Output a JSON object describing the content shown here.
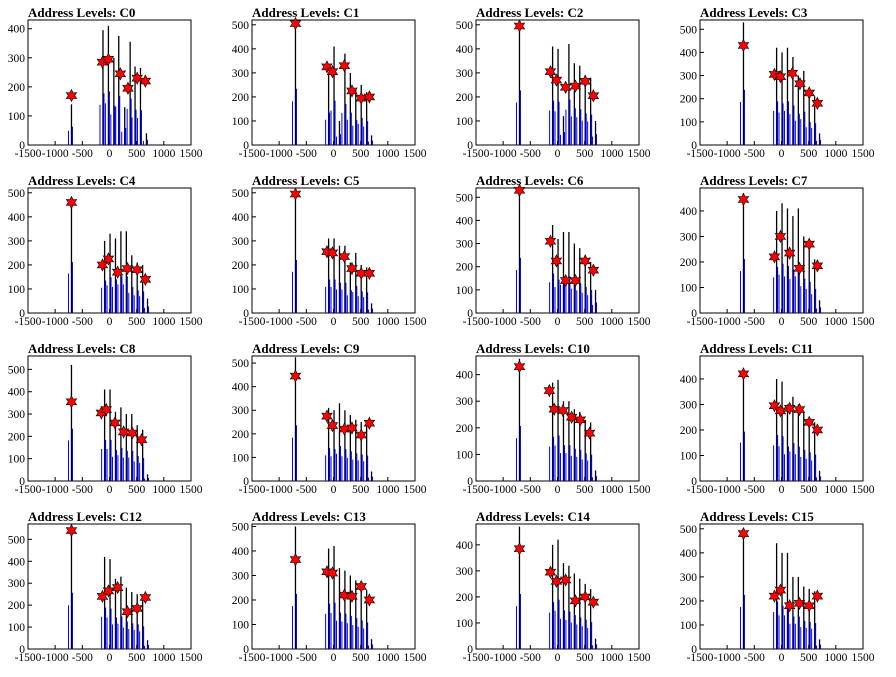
{
  "chart_data": [
    {
      "type": "bar",
      "title": "Address Levels: C0",
      "xlim": [
        -1500,
        1500
      ],
      "ylim": [
        0,
        430
      ],
      "yticks": [
        0,
        100,
        200,
        300,
        400
      ],
      "xticks": [
        -1500,
        -1000,
        -500,
        0,
        500,
        1000,
        1500
      ],
      "series": [
        {
          "x": [
            -700,
            -120,
            -20,
            80,
            170,
            280,
            380,
            470,
            570,
            680
          ],
          "values": [
            140,
            395,
            410,
            300,
            375,
            130,
            355,
            270,
            265,
            40
          ]
        }
      ],
      "peaks": {
        "x": [
          -700,
          -130,
          -20,
          200,
          340,
          510,
          660
        ],
        "y": [
          170,
          285,
          295,
          245,
          195,
          230,
          220
        ]
      }
    },
    {
      "type": "bar",
      "title": "Address Levels: C1",
      "xlim": [
        -1500,
        1500
      ],
      "ylim": [
        0,
        520
      ],
      "yticks": [
        0,
        100,
        200,
        300,
        400,
        500
      ],
      "xticks": [
        -1500,
        -1000,
        -500,
        0,
        500,
        1000,
        1500
      ],
      "series": [
        {
          "x": [
            -700,
            -90,
            10,
            110,
            210,
            310,
            410,
            510,
            610,
            700
          ],
          "values": [
            520,
            300,
            410,
            100,
            380,
            300,
            230,
            250,
            220,
            40
          ]
        }
      ],
      "peaks": {
        "x": [
          -700,
          -120,
          -20,
          200,
          340,
          510,
          660
        ],
        "y": [
          505,
          325,
          305,
          330,
          225,
          195,
          200
        ]
      }
    },
    {
      "type": "bar",
      "title": "Address Levels: C2",
      "xlim": [
        -1500,
        1500
      ],
      "ylim": [
        0,
        520
      ],
      "yticks": [
        0,
        100,
        200,
        300,
        400,
        500
      ],
      "xticks": [
        -1500,
        -1000,
        -500,
        0,
        500,
        1000,
        1500
      ],
      "series": [
        {
          "x": [
            -700,
            -90,
            10,
            110,
            210,
            310,
            410,
            510,
            610,
            700
          ],
          "values": [
            505,
            410,
            400,
            120,
            420,
            340,
            330,
            290,
            280,
            100
          ]
        }
      ],
      "peaks": {
        "x": [
          -700,
          -130,
          -20,
          150,
          330,
          510,
          660
        ],
        "y": [
          495,
          305,
          270,
          240,
          245,
          265,
          205
        ]
      }
    },
    {
      "type": "bar",
      "title": "Address Levels: C3",
      "xlim": [
        -1500,
        1500
      ],
      "ylim": [
        0,
        540
      ],
      "yticks": [
        0,
        100,
        200,
        300,
        400,
        500
      ],
      "xticks": [
        -1500,
        -1000,
        -500,
        0,
        500,
        1000,
        1500
      ],
      "series": [
        {
          "x": [
            -700,
            -90,
            10,
            110,
            210,
            310,
            410,
            510,
            610,
            700
          ],
          "values": [
            530,
            420,
            400,
            420,
            380,
            300,
            320,
            220,
            210,
            50
          ]
        }
      ],
      "peaks": {
        "x": [
          -700,
          -130,
          -20,
          200,
          340,
          510,
          660
        ],
        "y": [
          430,
          305,
          295,
          310,
          265,
          225,
          180
        ]
      }
    },
    {
      "type": "bar",
      "title": "Address Levels: C4",
      "xlim": [
        -1500,
        1500
      ],
      "ylim": [
        0,
        520
      ],
      "yticks": [
        0,
        100,
        200,
        300,
        400,
        500
      ],
      "xticks": [
        -1500,
        -1000,
        -500,
        0,
        500,
        1000,
        1500
      ],
      "series": [
        {
          "x": [
            -700,
            -90,
            10,
            110,
            210,
            310,
            410,
            510,
            610,
            700
          ],
          "values": [
            470,
            300,
            330,
            310,
            340,
            340,
            240,
            210,
            200,
            60
          ]
        }
      ],
      "peaks": {
        "x": [
          -700,
          -130,
          -20,
          150,
          330,
          510,
          660
        ],
        "y": [
          460,
          200,
          225,
          170,
          185,
          180,
          140
        ]
      }
    },
    {
      "type": "bar",
      "title": "Address Levels: C5",
      "xlim": [
        -1500,
        1500
      ],
      "ylim": [
        0,
        520
      ],
      "yticks": [
        0,
        100,
        200,
        300,
        400,
        500
      ],
      "xticks": [
        -1500,
        -1000,
        -500,
        0,
        500,
        1000,
        1500
      ],
      "series": [
        {
          "x": [
            -700,
            -90,
            10,
            110,
            210,
            310,
            410,
            510,
            610,
            700
          ],
          "values": [
            490,
            310,
            310,
            280,
            280,
            210,
            250,
            200,
            190,
            40
          ]
        }
      ],
      "peaks": {
        "x": [
          -700,
          -120,
          -20,
          200,
          340,
          510,
          660
        ],
        "y": [
          495,
          255,
          250,
          235,
          185,
          165,
          165
        ]
      }
    },
    {
      "type": "bar",
      "title": "Address Levels: C6",
      "xlim": [
        -1500,
        1500
      ],
      "ylim": [
        0,
        540
      ],
      "yticks": [
        0,
        100,
        200,
        300,
        400,
        500
      ],
      "xticks": [
        -1500,
        -1000,
        -500,
        0,
        500,
        1000,
        1500
      ],
      "series": [
        {
          "x": [
            -700,
            -90,
            10,
            110,
            210,
            310,
            410,
            510,
            610,
            700
          ],
          "values": [
            530,
            380,
            320,
            350,
            350,
            300,
            280,
            250,
            220,
            100
          ]
        }
      ],
      "peaks": {
        "x": [
          -700,
          -130,
          -20,
          150,
          330,
          510,
          660
        ],
        "y": [
          530,
          310,
          225,
          140,
          140,
          225,
          185
        ]
      }
    },
    {
      "type": "bar",
      "title": "Address Levels: C7",
      "xlim": [
        -1500,
        1500
      ],
      "ylim": [
        0,
        490
      ],
      "yticks": [
        0,
        100,
        200,
        300,
        400
      ],
      "xticks": [
        -1500,
        -1000,
        -500,
        0,
        500,
        1000,
        1500
      ],
      "series": [
        {
          "x": [
            -700,
            -90,
            10,
            110,
            210,
            310,
            410,
            510,
            610,
            700
          ],
          "values": [
            470,
            400,
            430,
            410,
            380,
            410,
            300,
            270,
            210,
            50
          ]
        }
      ],
      "peaks": {
        "x": [
          -700,
          -130,
          -20,
          150,
          330,
          510,
          660
        ],
        "y": [
          445,
          220,
          300,
          235,
          175,
          270,
          185
        ]
      }
    },
    {
      "type": "bar",
      "title": "Address Levels: C8",
      "xlim": [
        -1500,
        1500
      ],
      "ylim": [
        0,
        560
      ],
      "yticks": [
        0,
        100,
        200,
        300,
        400,
        500
      ],
      "xticks": [
        -1500,
        -1000,
        -500,
        0,
        500,
        1000,
        1500
      ],
      "series": [
        {
          "x": [
            -700,
            -90,
            10,
            110,
            210,
            310,
            410,
            510,
            610,
            700
          ],
          "values": [
            520,
            410,
            410,
            310,
            330,
            300,
            300,
            250,
            230,
            30
          ]
        }
      ],
      "peaks": {
        "x": [
          -700,
          -150,
          -60,
          100,
          260,
          420,
          590
        ],
        "y": [
          355,
          305,
          320,
          260,
          220,
          215,
          185
        ]
      }
    },
    {
      "type": "bar",
      "title": "Address Levels: C9",
      "xlim": [
        -1500,
        1500
      ],
      "ylim": [
        0,
        530
      ],
      "yticks": [
        0,
        100,
        200,
        300,
        400,
        500
      ],
      "xticks": [
        -1500,
        -1000,
        -500,
        0,
        500,
        1000,
        1500
      ],
      "series": [
        {
          "x": [
            -700,
            -90,
            10,
            110,
            210,
            310,
            410,
            510,
            610,
            700
          ],
          "values": [
            525,
            310,
            300,
            330,
            300,
            280,
            260,
            250,
            240,
            40
          ]
        }
      ],
      "peaks": {
        "x": [
          -700,
          -120,
          -20,
          200,
          340,
          510,
          660
        ],
        "y": [
          445,
          275,
          235,
          220,
          225,
          195,
          245
        ]
      }
    },
    {
      "type": "bar",
      "title": "Address Levels: C10",
      "xlim": [
        -1500,
        1500
      ],
      "ylim": [
        0,
        470
      ],
      "yticks": [
        0,
        100,
        200,
        300,
        400
      ],
      "xticks": [
        -1500,
        -1000,
        -500,
        0,
        500,
        1000,
        1500
      ],
      "series": [
        {
          "x": [
            -700,
            -90,
            10,
            110,
            210,
            310,
            410,
            510,
            610,
            700
          ],
          "values": [
            460,
            370,
            380,
            300,
            300,
            270,
            260,
            230,
            220,
            40
          ]
        }
      ],
      "peaks": {
        "x": [
          -700,
          -150,
          -60,
          100,
          260,
          420,
          590
        ],
        "y": [
          430,
          340,
          270,
          265,
          240,
          230,
          180
        ]
      }
    },
    {
      "type": "bar",
      "title": "Address Levels: C11",
      "xlim": [
        -1500,
        1500
      ],
      "ylim": [
        0,
        490
      ],
      "yticks": [
        0,
        100,
        200,
        300,
        400
      ],
      "xticks": [
        -1500,
        -1000,
        -500,
        0,
        500,
        1000,
        1500
      ],
      "series": [
        {
          "x": [
            -700,
            -90,
            10,
            110,
            210,
            310,
            410,
            510,
            610,
            700
          ],
          "values": [
            430,
            400,
            390,
            300,
            330,
            300,
            270,
            250,
            230,
            40
          ]
        }
      ],
      "peaks": {
        "x": [
          -700,
          -130,
          -20,
          150,
          330,
          510,
          660
        ],
        "y": [
          420,
          295,
          275,
          285,
          280,
          230,
          200
        ]
      }
    },
    {
      "type": "bar",
      "title": "Address Levels: C12",
      "xlim": [
        -1500,
        1500
      ],
      "ylim": [
        0,
        570
      ],
      "yticks": [
        0,
        100,
        200,
        300,
        400,
        500
      ],
      "xticks": [
        -1500,
        -1000,
        -500,
        0,
        500,
        1000,
        1500
      ],
      "series": [
        {
          "x": [
            -700,
            -90,
            10,
            110,
            210,
            310,
            410,
            510,
            610,
            700
          ],
          "values": [
            570,
            420,
            410,
            320,
            330,
            280,
            260,
            250,
            230,
            40
          ]
        }
      ],
      "peaks": {
        "x": [
          -700,
          -130,
          -20,
          150,
          330,
          510,
          660
        ],
        "y": [
          540,
          240,
          265,
          280,
          170,
          185,
          235
        ]
      }
    },
    {
      "type": "bar",
      "title": "Address Levels: C13",
      "xlim": [
        -1500,
        1500
      ],
      "ylim": [
        0,
        510
      ],
      "yticks": [
        0,
        100,
        200,
        300,
        400,
        500
      ],
      "xticks": [
        -1500,
        -1000,
        -500,
        0,
        500,
        1000,
        1500
      ],
      "series": [
        {
          "x": [
            -700,
            -90,
            10,
            110,
            210,
            310,
            410,
            510,
            610,
            700
          ],
          "values": [
            500,
            410,
            420,
            330,
            320,
            300,
            280,
            260,
            240,
            40
          ]
        }
      ],
      "peaks": {
        "x": [
          -700,
          -120,
          -20,
          200,
          340,
          510,
          660
        ],
        "y": [
          365,
          315,
          310,
          220,
          215,
          255,
          200
        ]
      }
    },
    {
      "type": "bar",
      "title": "Address Levels: C14",
      "xlim": [
        -1500,
        1500
      ],
      "ylim": [
        0,
        480
      ],
      "yticks": [
        0,
        100,
        200,
        300,
        400
      ],
      "xticks": [
        -1500,
        -1000,
        -500,
        0,
        500,
        1000,
        1500
      ],
      "series": [
        {
          "x": [
            -700,
            -90,
            10,
            110,
            210,
            310,
            410,
            510,
            610,
            700
          ],
          "values": [
            470,
            400,
            420,
            330,
            320,
            290,
            270,
            250,
            230,
            40
          ]
        }
      ],
      "peaks": {
        "x": [
          -700,
          -130,
          -20,
          150,
          330,
          510,
          660
        ],
        "y": [
          385,
          295,
          260,
          265,
          185,
          200,
          180
        ]
      }
    },
    {
      "type": "bar",
      "title": "Address Levels: C15",
      "xlim": [
        -1500,
        1500
      ],
      "ylim": [
        0,
        520
      ],
      "yticks": [
        0,
        100,
        200,
        300,
        400,
        500
      ],
      "xticks": [
        -1500,
        -1000,
        -500,
        0,
        500,
        1000,
        1500
      ],
      "series": [
        {
          "x": [
            -700,
            -90,
            10,
            110,
            210,
            310,
            410,
            510,
            610,
            700
          ],
          "values": [
            500,
            440,
            400,
            400,
            300,
            300,
            260,
            250,
            240,
            40
          ]
        }
      ],
      "peaks": {
        "x": [
          -700,
          -130,
          -20,
          150,
          330,
          510,
          660
        ],
        "y": [
          480,
          220,
          245,
          180,
          190,
          180,
          220
        ]
      }
    }
  ]
}
